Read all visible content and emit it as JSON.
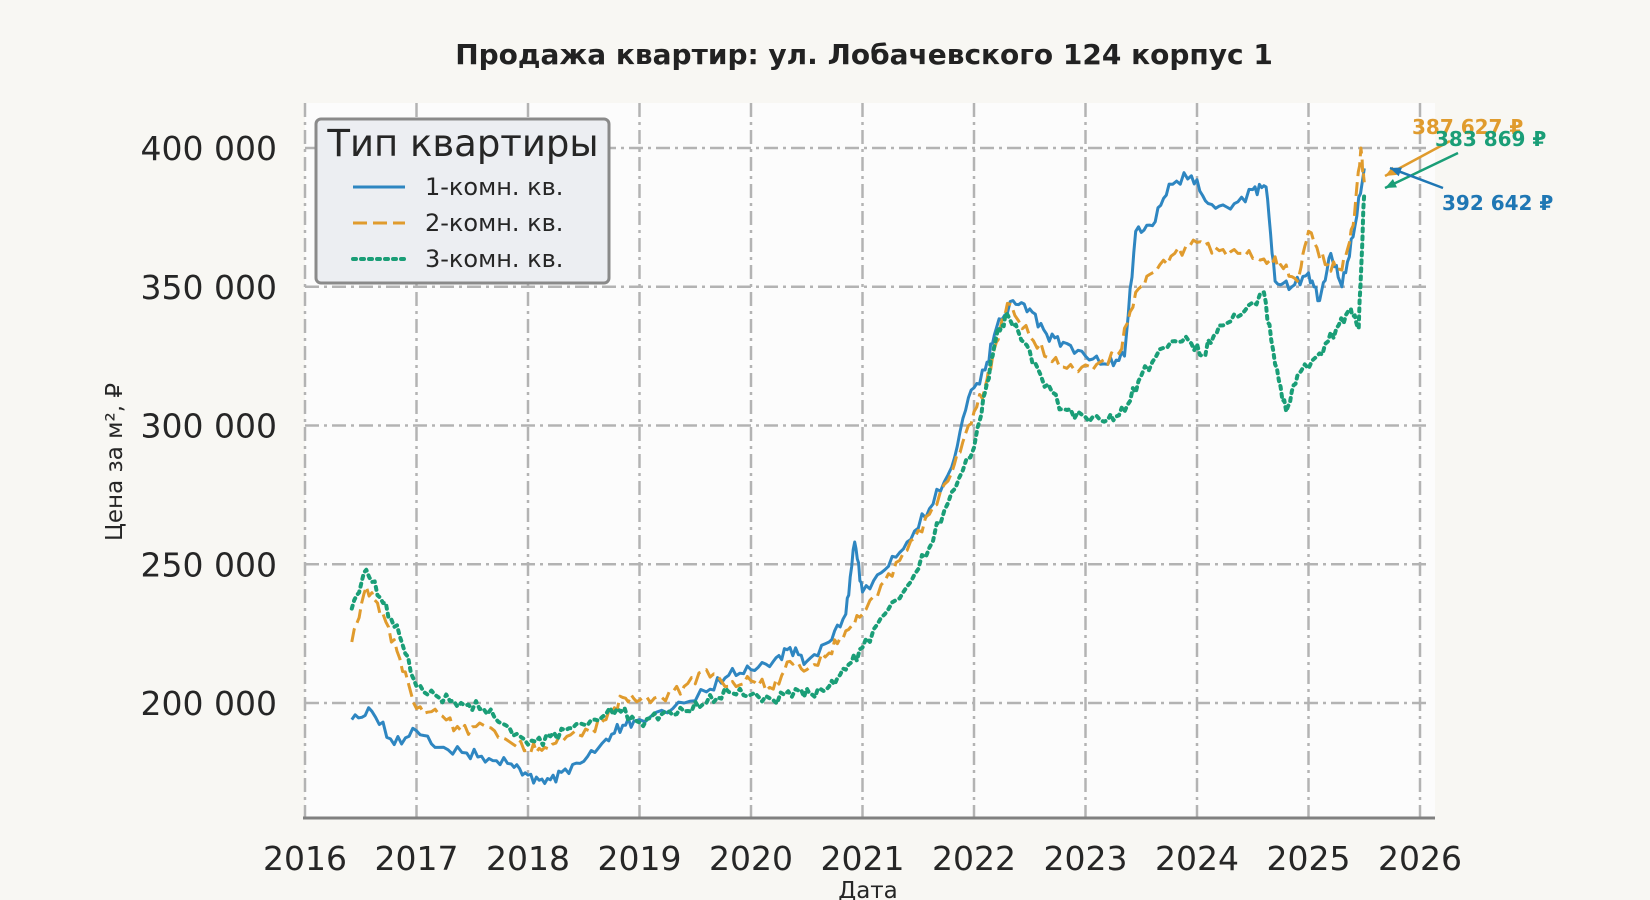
{
  "chart_data": {
    "type": "line",
    "title": "Продажа квартир: ул. Лобачевского 124 корпус 1",
    "xlabel": "Дата",
    "ylabel": "Цена за м², ₽",
    "xlim": [
      2016,
      2026
    ],
    "ylim": [
      160000,
      415000
    ],
    "x_ticks": [
      "2016",
      "2017",
      "2018",
      "2019",
      "2020",
      "2021",
      "2022",
      "2023",
      "2024",
      "2025",
      "2026"
    ],
    "y_ticks": [
      "200 000",
      "250 000",
      "300 000",
      "350 000",
      "400 000"
    ],
    "grid": true,
    "legend": {
      "title": "Тип квартиры",
      "placement": "top-left"
    },
    "series": [
      {
        "name": "1-комн. кв.",
        "color": "#2e86c1",
        "style": "solid",
        "points": [
          [
            2016.42,
            194000
          ],
          [
            2016.6,
            197000
          ],
          [
            2016.8,
            185000
          ],
          [
            2017.0,
            190000
          ],
          [
            2017.2,
            184000
          ],
          [
            2017.45,
            182000
          ],
          [
            2017.65,
            180000
          ],
          [
            2017.85,
            178000
          ],
          [
            2018.0,
            174000
          ],
          [
            2018.15,
            171000
          ],
          [
            2018.3,
            175000
          ],
          [
            2018.5,
            179000
          ],
          [
            2018.7,
            187000
          ],
          [
            2018.85,
            192000
          ],
          [
            2019.0,
            194000
          ],
          [
            2019.3,
            198000
          ],
          [
            2019.6,
            204000
          ],
          [
            2019.8,
            210000
          ],
          [
            2020.0,
            212000
          ],
          [
            2020.2,
            215000
          ],
          [
            2020.35,
            220000
          ],
          [
            2020.5,
            215000
          ],
          [
            2020.7,
            222000
          ],
          [
            2020.85,
            232000
          ],
          [
            2020.93,
            258000
          ],
          [
            2021.0,
            240000
          ],
          [
            2021.2,
            248000
          ],
          [
            2021.4,
            258000
          ],
          [
            2021.6,
            270000
          ],
          [
            2021.8,
            285000
          ],
          [
            2021.95,
            310000
          ],
          [
            2022.1,
            320000
          ],
          [
            2022.2,
            335000
          ],
          [
            2022.35,
            345000
          ],
          [
            2022.5,
            342000
          ],
          [
            2022.65,
            333000
          ],
          [
            2022.8,
            330000
          ],
          [
            2023.0,
            325000
          ],
          [
            2023.2,
            322000
          ],
          [
            2023.35,
            325000
          ],
          [
            2023.45,
            370000
          ],
          [
            2023.6,
            372000
          ],
          [
            2023.75,
            387000
          ],
          [
            2023.95,
            390000
          ],
          [
            2024.1,
            380000
          ],
          [
            2024.3,
            378000
          ],
          [
            2024.5,
            385000
          ],
          [
            2024.62,
            386000
          ],
          [
            2024.7,
            352000
          ],
          [
            2024.85,
            350000
          ],
          [
            2025.0,
            355000
          ],
          [
            2025.1,
            345000
          ],
          [
            2025.2,
            362000
          ],
          [
            2025.3,
            350000
          ],
          [
            2025.4,
            368000
          ],
          [
            2025.5,
            392642
          ]
        ]
      },
      {
        "name": "2-комн. кв.",
        "color": "#e09b2d",
        "style": "dashed",
        "points": [
          [
            2016.42,
            222000
          ],
          [
            2016.55,
            242000
          ],
          [
            2016.7,
            232000
          ],
          [
            2016.85,
            216000
          ],
          [
            2017.0,
            198000
          ],
          [
            2017.2,
            196000
          ],
          [
            2017.4,
            190000
          ],
          [
            2017.6,
            192000
          ],
          [
            2017.8,
            187000
          ],
          [
            2018.0,
            183000
          ],
          [
            2018.15,
            184000
          ],
          [
            2018.35,
            188000
          ],
          [
            2018.55,
            190000
          ],
          [
            2018.7,
            194000
          ],
          [
            2018.85,
            202000
          ],
          [
            2019.0,
            201000
          ],
          [
            2019.2,
            202000
          ],
          [
            2019.4,
            206000
          ],
          [
            2019.6,
            212000
          ],
          [
            2019.8,
            206000
          ],
          [
            2020.0,
            208000
          ],
          [
            2020.2,
            205000
          ],
          [
            2020.35,
            215000
          ],
          [
            2020.5,
            212000
          ],
          [
            2020.7,
            218000
          ],
          [
            2020.85,
            226000
          ],
          [
            2021.0,
            232000
          ],
          [
            2021.2,
            244000
          ],
          [
            2021.4,
            255000
          ],
          [
            2021.6,
            268000
          ],
          [
            2021.8,
            283000
          ],
          [
            2021.95,
            300000
          ],
          [
            2022.1,
            314000
          ],
          [
            2022.2,
            330000
          ],
          [
            2022.3,
            344000
          ],
          [
            2022.5,
            332000
          ],
          [
            2022.7,
            323000
          ],
          [
            2022.9,
            320000
          ],
          [
            2023.1,
            322000
          ],
          [
            2023.3,
            326000
          ],
          [
            2023.45,
            348000
          ],
          [
            2023.6,
            355000
          ],
          [
            2023.8,
            362000
          ],
          [
            2024.0,
            366000
          ],
          [
            2024.2,
            363000
          ],
          [
            2024.4,
            362000
          ],
          [
            2024.6,
            360000
          ],
          [
            2024.75,
            358000
          ],
          [
            2024.9,
            352000
          ],
          [
            2025.0,
            370000
          ],
          [
            2025.15,
            358000
          ],
          [
            2025.3,
            356000
          ],
          [
            2025.4,
            372000
          ],
          [
            2025.47,
            400000
          ],
          [
            2025.5,
            387627
          ]
        ]
      },
      {
        "name": "3-комн. кв.",
        "color": "#1a9e77",
        "style": "dotted",
        "points": [
          [
            2016.42,
            234000
          ],
          [
            2016.55,
            248000
          ],
          [
            2016.7,
            236000
          ],
          [
            2016.85,
            224000
          ],
          [
            2017.0,
            206000
          ],
          [
            2017.2,
            202000
          ],
          [
            2017.4,
            200000
          ],
          [
            2017.6,
            198000
          ],
          [
            2017.8,
            192000
          ],
          [
            2018.0,
            185000
          ],
          [
            2018.2,
            188000
          ],
          [
            2018.4,
            191000
          ],
          [
            2018.6,
            194000
          ],
          [
            2018.8,
            198000
          ],
          [
            2019.0,
            193000
          ],
          [
            2019.2,
            196000
          ],
          [
            2019.4,
            197000
          ],
          [
            2019.6,
            200000
          ],
          [
            2019.8,
            204000
          ],
          [
            2020.0,
            203000
          ],
          [
            2020.2,
            201000
          ],
          [
            2020.4,
            205000
          ],
          [
            2020.55,
            203000
          ],
          [
            2020.7,
            206000
          ],
          [
            2020.85,
            212000
          ],
          [
            2021.0,
            220000
          ],
          [
            2021.2,
            232000
          ],
          [
            2021.4,
            242000
          ],
          [
            2021.6,
            256000
          ],
          [
            2021.8,
            276000
          ],
          [
            2022.0,
            292000
          ],
          [
            2022.1,
            312000
          ],
          [
            2022.2,
            332000
          ],
          [
            2022.3,
            340000
          ],
          [
            2022.45,
            330000
          ],
          [
            2022.6,
            318000
          ],
          [
            2022.8,
            306000
          ],
          [
            2023.0,
            303000
          ],
          [
            2023.2,
            302000
          ],
          [
            2023.35,
            305000
          ],
          [
            2023.5,
            318000
          ],
          [
            2023.7,
            328000
          ],
          [
            2023.9,
            332000
          ],
          [
            2024.05,
            325000
          ],
          [
            2024.2,
            336000
          ],
          [
            2024.4,
            340000
          ],
          [
            2024.6,
            348000
          ],
          [
            2024.7,
            322000
          ],
          [
            2024.8,
            305000
          ],
          [
            2024.9,
            318000
          ],
          [
            2025.1,
            326000
          ],
          [
            2025.25,
            335000
          ],
          [
            2025.38,
            342000
          ],
          [
            2025.45,
            335000
          ],
          [
            2025.5,
            383869
          ]
        ]
      }
    ],
    "annotations": [
      {
        "text": "387 627 ₽",
        "series": "2-комн. кв.",
        "color": "#e09b2d"
      },
      {
        "text": "383 869 ₽",
        "series": "3-комн. кв.",
        "color": "#1a9e77"
      },
      {
        "text": "392 642 ₽",
        "series": "1-комн. кв.",
        "color": "#1f77b4"
      }
    ]
  }
}
